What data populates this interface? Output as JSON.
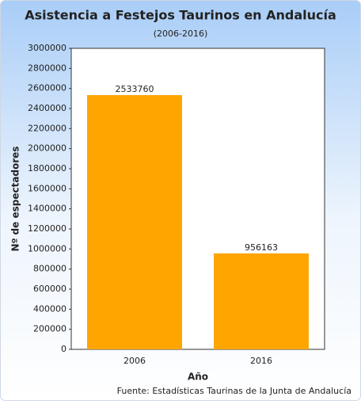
{
  "chart_data": {
    "type": "bar",
    "title": "Asistencia a Festejos Taurinos en Andalucía",
    "subtitle": "(2006-2016)",
    "x_label": "Año",
    "y_label": "Nº de espectadores",
    "source": "Fuente: Estadísticas Taurinas de la Junta de Andalucía",
    "categories": [
      "2006",
      "2016"
    ],
    "values": [
      2533760,
      956163
    ],
    "color": "#ffa500",
    "ylim": [
      0,
      3000000
    ],
    "yticks": [
      0,
      200000,
      400000,
      600000,
      800000,
      1000000,
      1200000,
      1400000,
      1600000,
      1800000,
      2000000,
      2200000,
      2400000,
      2600000,
      2800000,
      3000000
    ],
    "grid": false
  }
}
